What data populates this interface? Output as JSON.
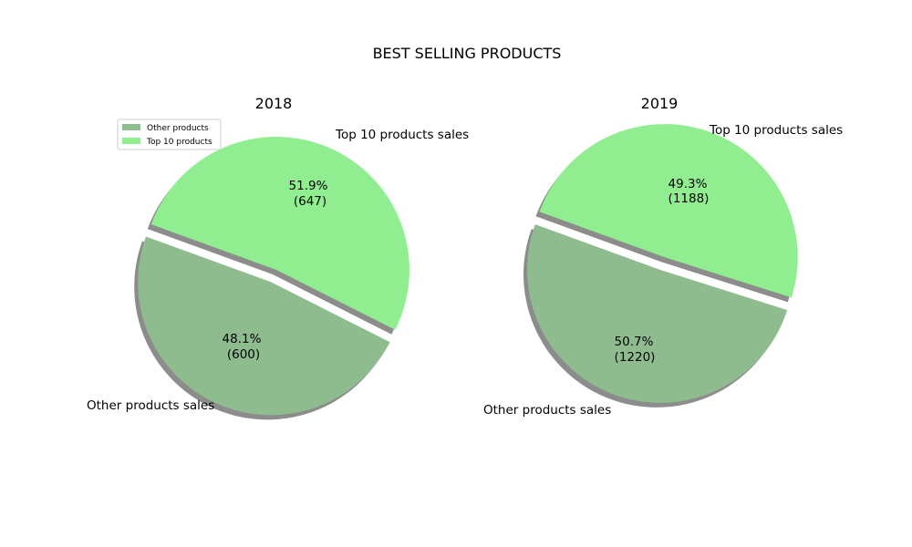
{
  "title": "BEST SELLING PRODUCTS",
  "colors": {
    "other": "#8fbc8f",
    "top10": "#90ee90",
    "shadow": "#808080"
  },
  "legend": {
    "placement": "upper-left",
    "entries": [
      "Other products",
      "Top 10 products"
    ]
  },
  "chart_data": [
    {
      "type": "pie",
      "title": "2018",
      "categories": [
        "Other products sales",
        "Top 10 products sales"
      ],
      "values": [
        600,
        647
      ],
      "percent_labels": [
        "48.1%",
        "51.9%"
      ],
      "value_labels": [
        "(600)",
        "(647)"
      ],
      "explode": [
        0.1,
        0
      ],
      "shadow": true
    },
    {
      "type": "pie",
      "title": "2019",
      "categories": [
        "Other products sales",
        "Top 10 products sales"
      ],
      "values": [
        1220,
        1188
      ],
      "percent_labels": [
        "50.7%",
        "49.3%"
      ],
      "value_labels": [
        "(1220)",
        "(1188)"
      ],
      "explode": [
        0,
        0.1
      ],
      "shadow": true
    }
  ]
}
